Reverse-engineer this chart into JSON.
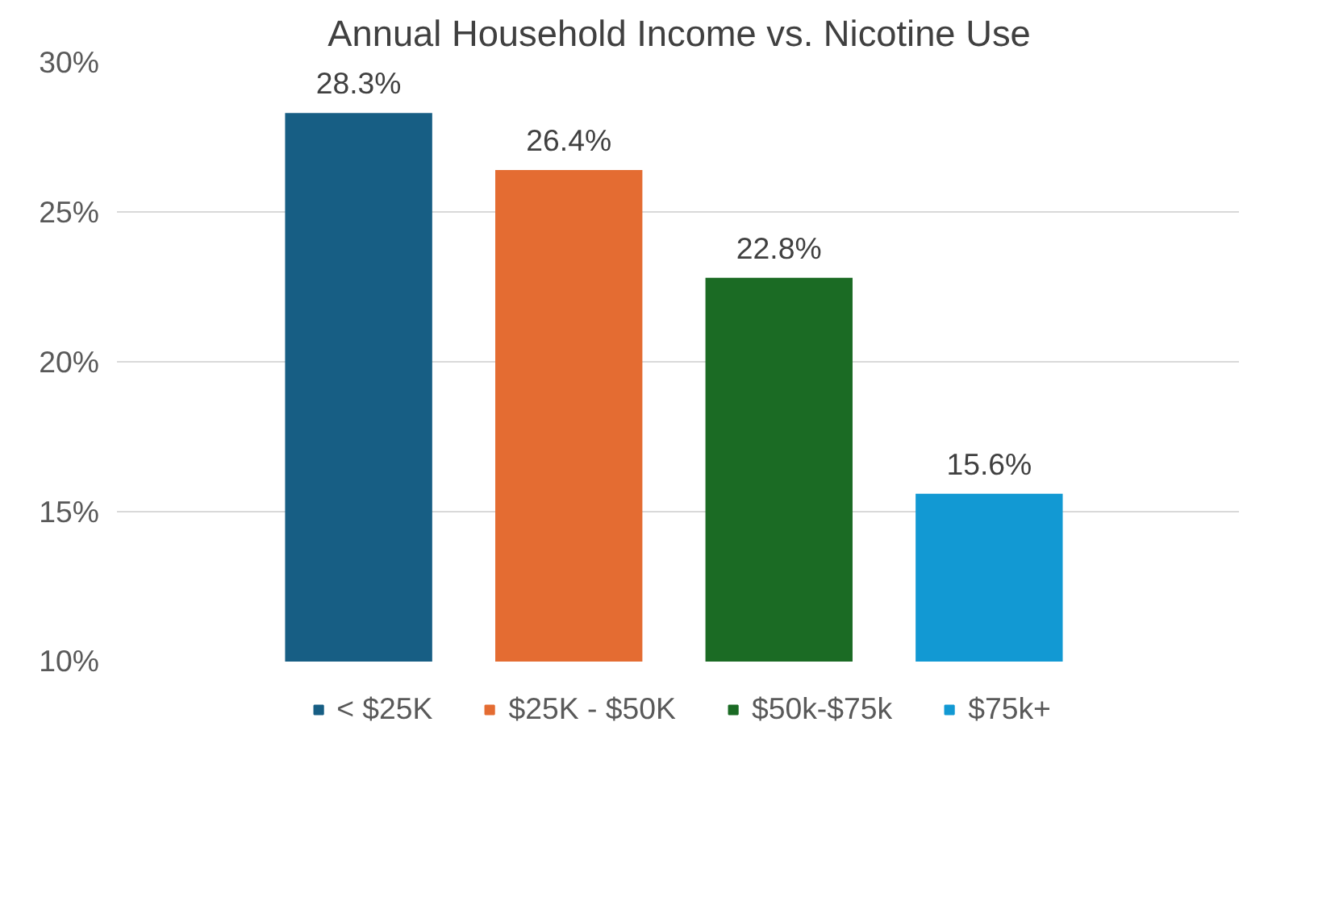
{
  "chart_data": {
    "type": "bar",
    "title": "Annual Household Income vs. Nicotine Use",
    "categories": [
      null,
      null,
      null,
      null
    ],
    "series": [
      {
        "name": "< $25K",
        "color": "#175e84",
        "values": [
          28.3,
          null,
          null,
          null
        ],
        "value_labels": [
          "28.3%",
          null,
          null,
          null
        ]
      },
      {
        "name": "$25K - $50K",
        "color": "#e46c32",
        "values": [
          null,
          26.4,
          null,
          null
        ],
        "value_labels": [
          null,
          "26.4%",
          null,
          null
        ]
      },
      {
        "name": "$50k-$75k",
        "color": "#1b6b24",
        "values": [
          null,
          null,
          22.8,
          null
        ],
        "value_labels": [
          null,
          null,
          "22.8%",
          null
        ]
      },
      {
        "name": "$75k+",
        "color": "#1299d3",
        "values": [
          null,
          null,
          null,
          15.6
        ],
        "value_labels": [
          null,
          null,
          null,
          "15.6%"
        ]
      }
    ],
    "ylim": [
      10,
      30
    ],
    "yticks": [
      {
        "value": 10,
        "label": "10%"
      },
      {
        "value": 15,
        "label": "15%"
      },
      {
        "value": 20,
        "label": "20%"
      },
      {
        "value": 25,
        "label": "25%"
      },
      {
        "value": 30,
        "label": "30%"
      }
    ],
    "grid": "y",
    "legend": "bottom"
  }
}
